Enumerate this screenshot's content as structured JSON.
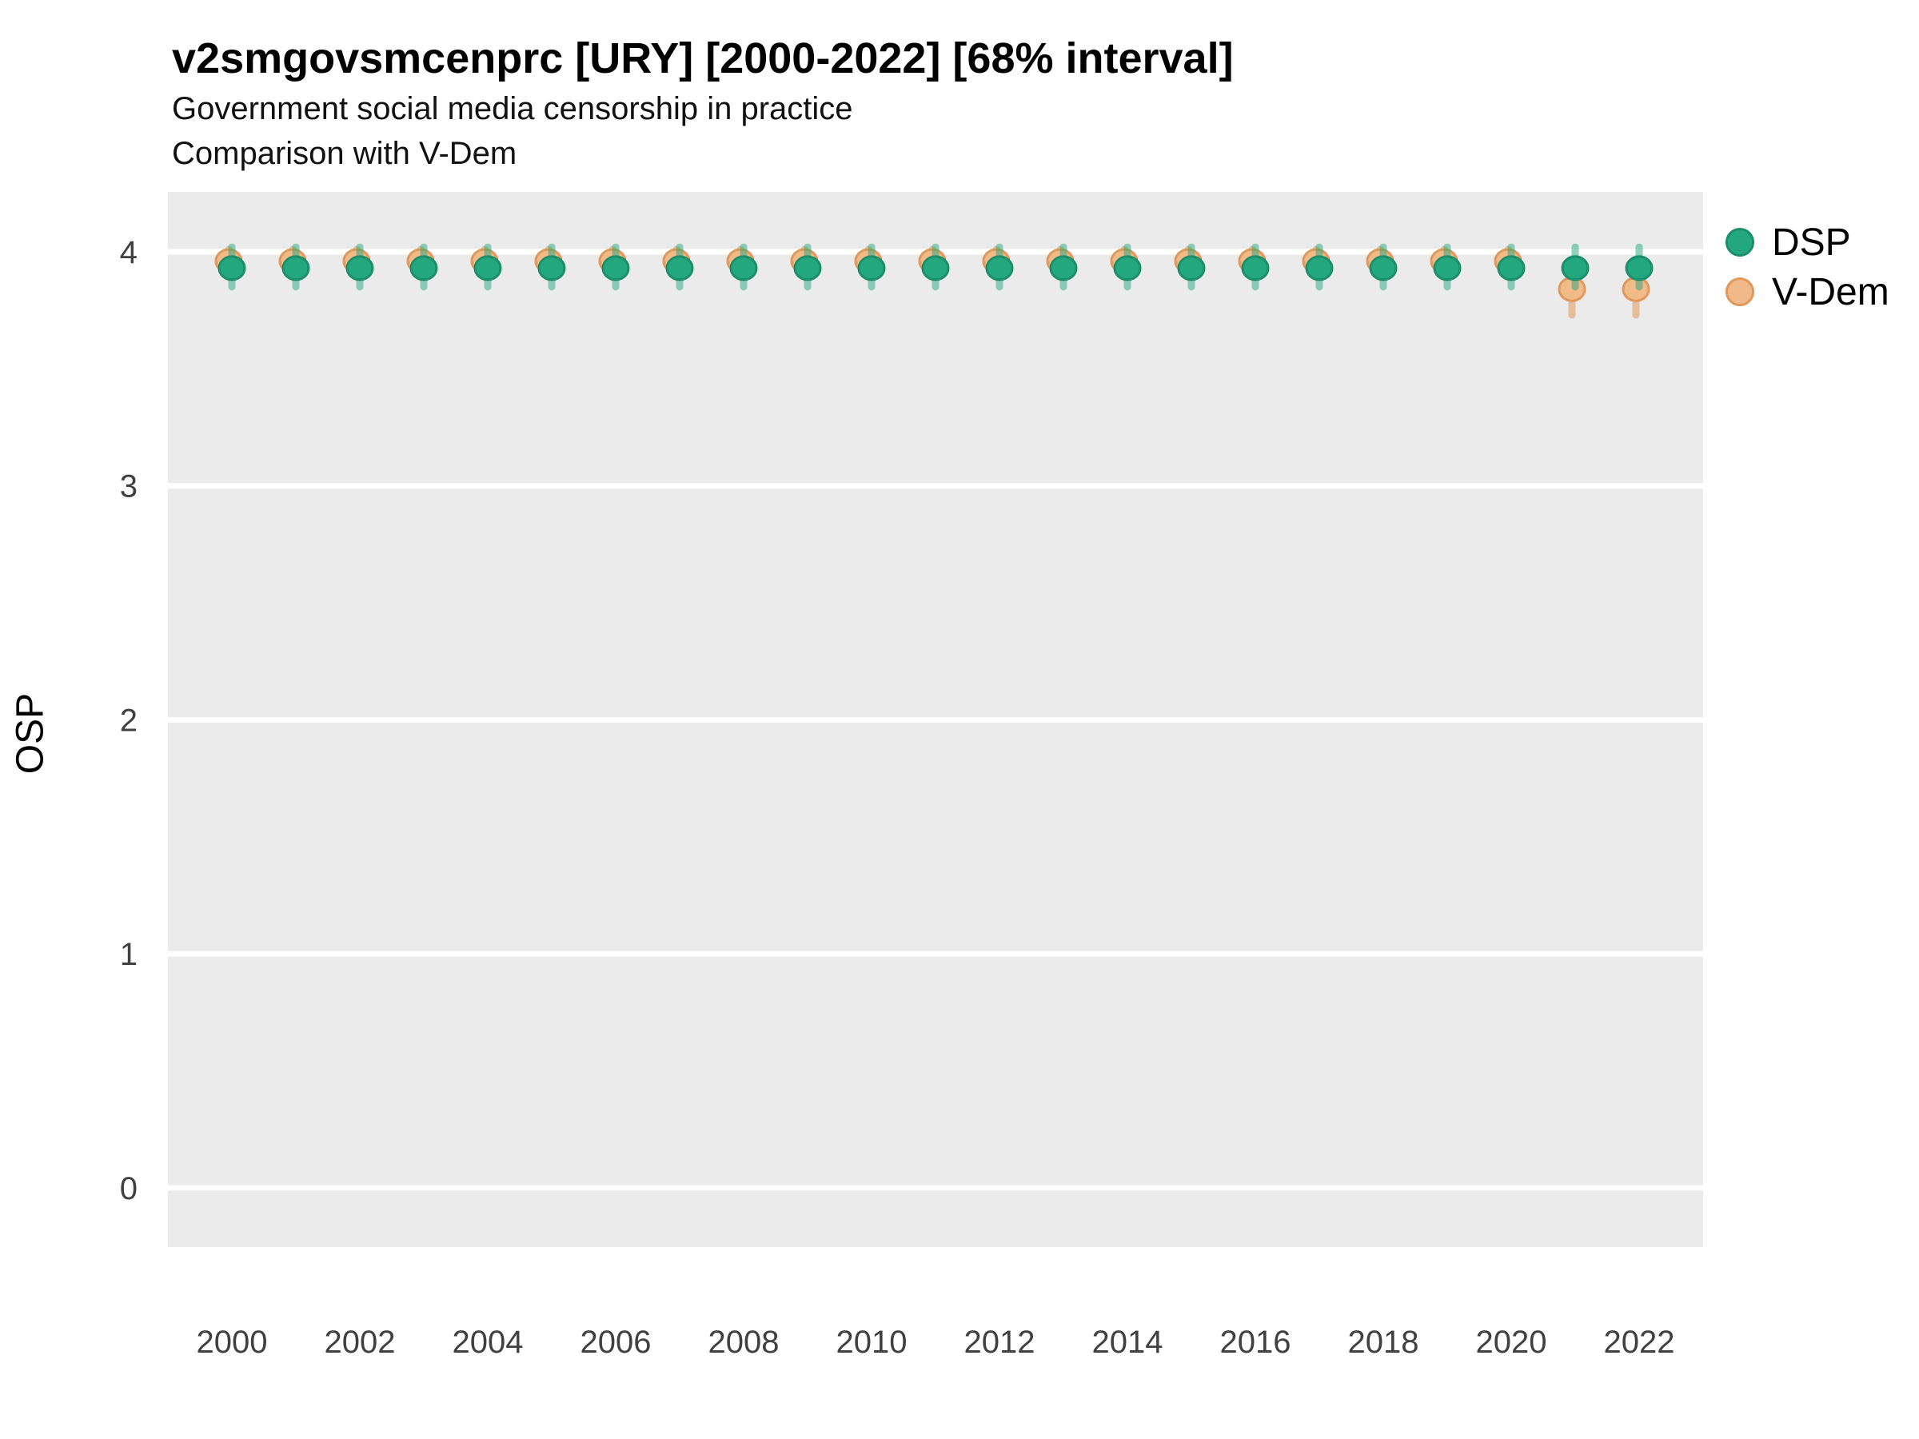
{
  "header": {
    "title": "v2smgovsmcenprc [URY] [2000-2022] [68% interval]",
    "subtitle1": "Government social media censorship in practice",
    "subtitle2": "Comparison with V-Dem"
  },
  "axes": {
    "y_label": "OSP",
    "y_ticks": [
      4,
      3,
      2,
      1,
      0
    ],
    "x_ticks": [
      2000,
      2002,
      2004,
      2006,
      2008,
      2010,
      2012,
      2014,
      2016,
      2018,
      2020,
      2022
    ]
  },
  "legend": {
    "items": [
      {
        "label": "DSP",
        "fill": "#23A87E",
        "stroke": "#1B8E6B"
      },
      {
        "label": "V-Dem",
        "fill": "#F2B989",
        "stroke": "#E0985C"
      }
    ],
    "position": "right"
  },
  "colors": {
    "panel_background": "#EBEBEB",
    "gridline": "#FFFFFF",
    "tick_label": "#404040",
    "dsp_fill": "#23A87E",
    "dsp_stroke": "#1B8E6B",
    "dsp_errorbar": "rgba(35,168,126,0.5)",
    "vdem_fill": "#F2B989",
    "vdem_stroke": "#E0985C",
    "vdem_errorbar": "rgba(224,152,92,0.55)"
  },
  "chart_data": {
    "type": "scatter",
    "title": "v2smgovsmcenprc [URY] [2000-2022] [68% interval]",
    "subtitle": [
      "Government social media censorship in practice",
      "Comparison with V-Dem"
    ],
    "xlabel": "",
    "ylabel": "OSP",
    "x": [
      2000,
      2001,
      2002,
      2003,
      2004,
      2005,
      2006,
      2007,
      2008,
      2009,
      2010,
      2011,
      2012,
      2013,
      2014,
      2015,
      2016,
      2017,
      2018,
      2019,
      2020,
      2021,
      2022
    ],
    "series": [
      {
        "name": "DSP",
        "fill": "#23A87E",
        "stroke": "#1B8E6B",
        "bar": "rgba(35,168,126,0.5)",
        "values": [
          3.93,
          3.93,
          3.93,
          3.93,
          3.93,
          3.93,
          3.93,
          3.93,
          3.93,
          3.93,
          3.93,
          3.93,
          3.93,
          3.93,
          3.93,
          3.93,
          3.93,
          3.93,
          3.93,
          3.93,
          3.93,
          3.93,
          3.93
        ],
        "lo": [
          3.85,
          3.85,
          3.85,
          3.85,
          3.85,
          3.85,
          3.85,
          3.85,
          3.85,
          3.85,
          3.85,
          3.85,
          3.85,
          3.85,
          3.85,
          3.85,
          3.85,
          3.85,
          3.85,
          3.85,
          3.85,
          3.85,
          3.85
        ],
        "hi": [
          4.02,
          4.02,
          4.02,
          4.02,
          4.02,
          4.02,
          4.02,
          4.02,
          4.02,
          4.02,
          4.02,
          4.02,
          4.02,
          4.02,
          4.02,
          4.02,
          4.02,
          4.02,
          4.02,
          4.02,
          4.02,
          4.02,
          4.02
        ],
        "dx": 0
      },
      {
        "name": "V-Dem",
        "fill": "#F2B989",
        "stroke": "#E0985C",
        "bar": "rgba(224,152,92,0.55)",
        "values": [
          3.96,
          3.96,
          3.96,
          3.96,
          3.96,
          3.96,
          3.96,
          3.96,
          3.96,
          3.96,
          3.96,
          3.96,
          3.96,
          3.96,
          3.96,
          3.96,
          3.96,
          3.96,
          3.96,
          3.96,
          3.96,
          3.84,
          3.84
        ],
        "lo": [
          3.89,
          3.89,
          3.89,
          3.89,
          3.89,
          3.89,
          3.89,
          3.89,
          3.89,
          3.89,
          3.89,
          3.89,
          3.89,
          3.89,
          3.89,
          3.89,
          3.89,
          3.89,
          3.89,
          3.89,
          3.89,
          3.73,
          3.73
        ],
        "hi": [
          4.01,
          4.01,
          4.01,
          4.01,
          4.01,
          4.01,
          4.01,
          4.01,
          4.01,
          4.01,
          4.01,
          4.01,
          4.01,
          4.01,
          4.01,
          4.01,
          4.01,
          4.01,
          4.01,
          4.01,
          4.01,
          3.95,
          3.95
        ],
        "dx": -4
      }
    ],
    "xlim": [
      1999,
      2023
    ],
    "ylim": [
      -0.253,
      4.256
    ],
    "grid": "major-horizontal-only",
    "legend_position": "right",
    "interval": "68%"
  }
}
